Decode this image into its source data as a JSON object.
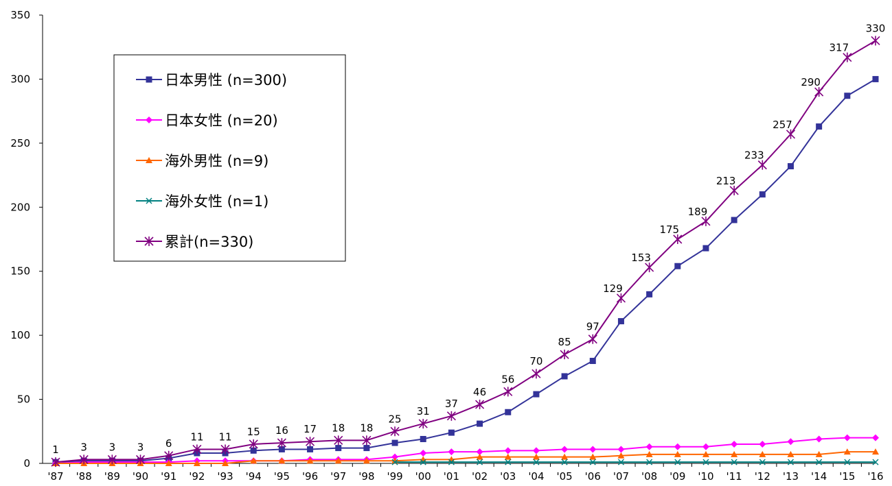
{
  "chart_data": {
    "type": "line",
    "x": [
      "'87",
      "'88",
      "'89",
      "'90",
      "'91",
      "'92",
      "'93",
      "'94",
      "'95",
      "'96",
      "'97",
      "'98",
      "'99",
      "'00",
      "'01",
      "'02",
      "'03",
      "'04",
      "'05",
      "'06",
      "'07",
      "'08",
      "'09",
      "'10",
      "'11",
      "'12",
      "'13",
      "'14",
      "'15",
      "'16"
    ],
    "ylim": [
      0,
      350
    ],
    "yticks": [
      0,
      50,
      100,
      150,
      200,
      250,
      300,
      350
    ],
    "grid": false,
    "legend_position": "upper-left",
    "series": [
      {
        "name": "日本男性 (n=300)",
        "color": "#333399",
        "marker": "square",
        "values": [
          1,
          2,
          2,
          2,
          4,
          8,
          8,
          10,
          11,
          11,
          12,
          12,
          16,
          19,
          24,
          31,
          40,
          54,
          68,
          80,
          111,
          132,
          154,
          168,
          190,
          210,
          232,
          263,
          287,
          300
        ]
      },
      {
        "name": "日本女性 (n=20)",
        "color": "#FF00FF",
        "marker": "diamond",
        "values": [
          0,
          1,
          1,
          1,
          1,
          2,
          2,
          2,
          2,
          3,
          3,
          3,
          5,
          8,
          9,
          9,
          10,
          10,
          11,
          11,
          11,
          13,
          13,
          13,
          15,
          15,
          17,
          19,
          20,
          20
        ]
      },
      {
        "name": "海外男性 (n=9)",
        "color": "#FF6600",
        "marker": "triangle",
        "values": [
          0,
          0,
          0,
          0,
          0,
          0,
          0,
          2,
          2,
          2,
          2,
          2,
          2,
          3,
          3,
          5,
          5,
          5,
          5,
          5,
          6,
          7,
          7,
          7,
          7,
          7,
          7,
          7,
          9,
          9
        ]
      },
      {
        "name": "海外女性 (n=1)",
        "color": "#008080",
        "marker": "x",
        "values": [
          null,
          null,
          null,
          null,
          null,
          null,
          null,
          null,
          null,
          null,
          null,
          null,
          1,
          1,
          1,
          1,
          1,
          1,
          1,
          1,
          1,
          1,
          1,
          1,
          1,
          1,
          1,
          1,
          1,
          1
        ]
      },
      {
        "name": "累計(n=330)",
        "color": "#800080",
        "marker": "star",
        "values": [
          1,
          3,
          3,
          3,
          6,
          11,
          11,
          15,
          16,
          17,
          18,
          18,
          25,
          31,
          37,
          46,
          56,
          70,
          85,
          97,
          129,
          153,
          175,
          189,
          213,
          233,
          257,
          290,
          317,
          330
        ]
      }
    ],
    "data_labels": {
      "series_index": 4,
      "labels": [
        "1",
        "3",
        "3",
        "3",
        "6",
        "11",
        "11",
        "15",
        "16",
        "17",
        "18",
        "18",
        "25",
        "31",
        "37",
        "46",
        "56",
        "70",
        "85",
        "97",
        "129",
        "153",
        "175",
        "189",
        "213",
        "233",
        "257",
        "290",
        "317",
        "330"
      ]
    }
  }
}
